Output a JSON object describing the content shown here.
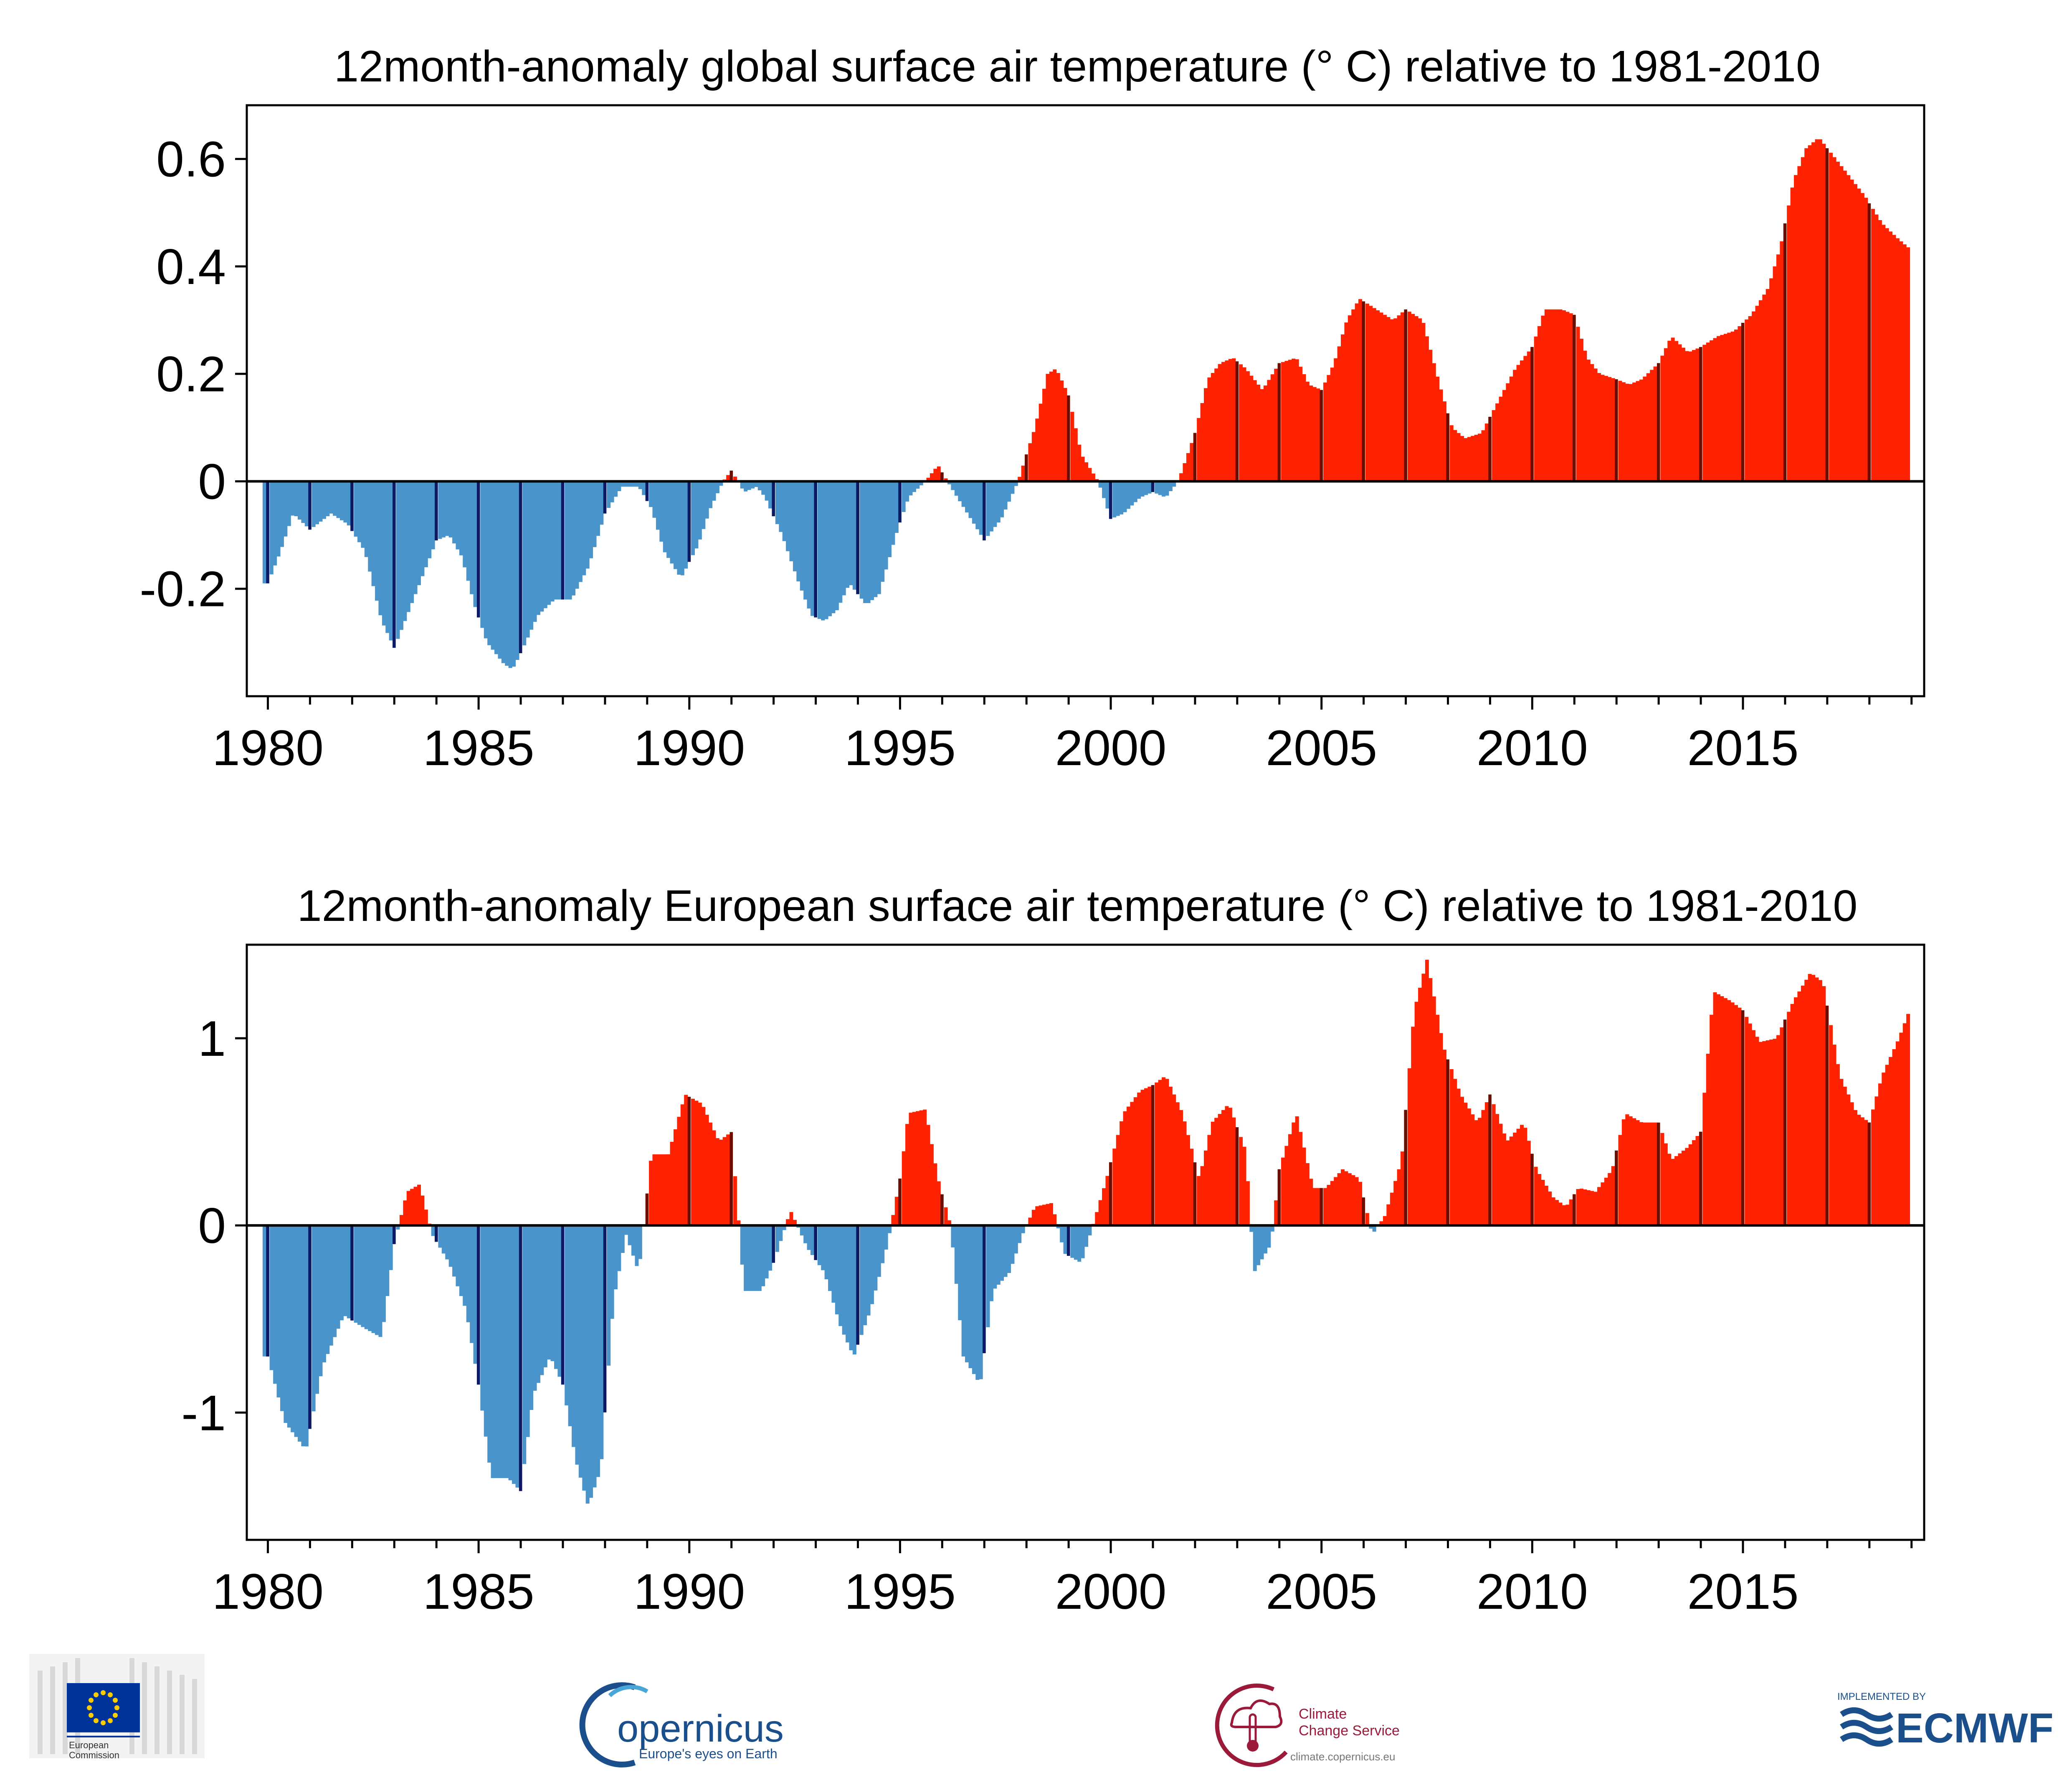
{
  "colors": {
    "positive": "#ff2200",
    "negative": "#4a94cc",
    "year_marker_positive": "#6b0e00",
    "year_marker_negative": "#0c1a66",
    "axis": "#000000"
  },
  "chart_data": [
    {
      "type": "bar",
      "title": "12month-anomaly global surface air temperature (° C) relative to 1981-2010",
      "xlabel": "",
      "ylabel": "",
      "xlim": [
        1979.5,
        2019.3
      ],
      "ylim": [
        -0.4,
        0.7
      ],
      "x_ticks": [
        1980,
        1985,
        1990,
        1995,
        2000,
        2005,
        2010,
        2015
      ],
      "y_ticks": [
        -0.2,
        0,
        0.2,
        0.4,
        0.6
      ],
      "y_tick_labels": [
        "-0.2",
        "0",
        "0.2",
        "0.4",
        "0.6"
      ],
      "x_tick_labels": [
        "1980",
        "1985",
        "1990",
        "1995",
        "2000",
        "2005",
        "2010",
        "2015"
      ],
      "grid": false,
      "x_start": 1979.917,
      "step_months": 1,
      "anchors": [
        [
          1980.0,
          -0.19
        ],
        [
          1980.3,
          -0.13
        ],
        [
          1980.6,
          -0.06
        ],
        [
          1981.0,
          -0.09
        ],
        [
          1981.5,
          -0.06
        ],
        [
          1981.9,
          -0.08
        ],
        [
          1982.3,
          -0.13
        ],
        [
          1982.7,
          -0.26
        ],
        [
          1983.0,
          -0.31
        ],
        [
          1983.3,
          -0.25
        ],
        [
          1983.7,
          -0.17
        ],
        [
          1984.0,
          -0.11
        ],
        [
          1984.3,
          -0.1
        ],
        [
          1984.6,
          -0.14
        ],
        [
          1984.9,
          -0.23
        ],
        [
          1985.2,
          -0.3
        ],
        [
          1985.6,
          -0.34
        ],
        [
          1985.8,
          -0.35
        ],
        [
          1986.0,
          -0.32
        ],
        [
          1986.4,
          -0.25
        ],
        [
          1986.8,
          -0.22
        ],
        [
          1987.2,
          -0.22
        ],
        [
          1987.6,
          -0.16
        ],
        [
          1988.0,
          -0.06
        ],
        [
          1988.4,
          -0.01
        ],
        [
          1988.8,
          -0.01
        ],
        [
          1989.1,
          -0.05
        ],
        [
          1989.4,
          -0.13
        ],
        [
          1989.8,
          -0.18
        ],
        [
          1990.2,
          -0.12
        ],
        [
          1990.5,
          -0.05
        ],
        [
          1990.8,
          0.0
        ],
        [
          1991.0,
          0.02
        ],
        [
          1991.3,
          -0.02
        ],
        [
          1991.6,
          -0.01
        ],
        [
          1991.8,
          -0.03
        ],
        [
          1992.2,
          -0.1
        ],
        [
          1992.6,
          -0.19
        ],
        [
          1992.9,
          -0.25
        ],
        [
          1993.2,
          -0.26
        ],
        [
          1993.5,
          -0.24
        ],
        [
          1993.8,
          -0.19
        ],
        [
          1994.2,
          -0.23
        ],
        [
          1994.5,
          -0.21
        ],
        [
          1994.9,
          -0.1
        ],
        [
          1995.2,
          -0.03
        ],
        [
          1995.6,
          0.0
        ],
        [
          1995.9,
          0.03
        ],
        [
          1996.2,
          -0.01
        ],
        [
          1996.6,
          -0.06
        ],
        [
          1997.0,
          -0.11
        ],
        [
          1997.4,
          -0.07
        ],
        [
          1997.8,
          0.0
        ],
        [
          1998.2,
          0.1
        ],
        [
          1998.5,
          0.2
        ],
        [
          1998.7,
          0.21
        ],
        [
          1999.0,
          0.16
        ],
        [
          1999.3,
          0.05
        ],
        [
          1999.7,
          0.0
        ],
        [
          2000.0,
          -0.07
        ],
        [
          2000.3,
          -0.06
        ],
        [
          2000.7,
          -0.03
        ],
        [
          2001.0,
          -0.02
        ],
        [
          2001.3,
          -0.03
        ],
        [
          2001.6,
          0.0
        ],
        [
          2002.0,
          0.09
        ],
        [
          2002.3,
          0.19
        ],
        [
          2002.6,
          0.22
        ],
        [
          2002.9,
          0.23
        ],
        [
          2003.2,
          0.21
        ],
        [
          2003.6,
          0.17
        ],
        [
          2004.0,
          0.22
        ],
        [
          2004.4,
          0.23
        ],
        [
          2004.7,
          0.18
        ],
        [
          2005.0,
          0.17
        ],
        [
          2005.3,
          0.22
        ],
        [
          2005.6,
          0.3
        ],
        [
          2005.9,
          0.34
        ],
        [
          2006.3,
          0.32
        ],
        [
          2006.7,
          0.3
        ],
        [
          2007.0,
          0.32
        ],
        [
          2007.4,
          0.3
        ],
        [
          2007.8,
          0.18
        ],
        [
          2008.1,
          0.1
        ],
        [
          2008.4,
          0.08
        ],
        [
          2008.8,
          0.09
        ],
        [
          2009.2,
          0.15
        ],
        [
          2009.6,
          0.21
        ],
        [
          2010.0,
          0.25
        ],
        [
          2010.3,
          0.32
        ],
        [
          2010.7,
          0.32
        ],
        [
          2011.0,
          0.31
        ],
        [
          2011.3,
          0.23
        ],
        [
          2011.6,
          0.2
        ],
        [
          2012.0,
          0.19
        ],
        [
          2012.3,
          0.18
        ],
        [
          2012.6,
          0.19
        ],
        [
          2013.0,
          0.22
        ],
        [
          2013.3,
          0.27
        ],
        [
          2013.7,
          0.24
        ],
        [
          2014.0,
          0.25
        ],
        [
          2014.4,
          0.27
        ],
        [
          2014.8,
          0.28
        ],
        [
          2015.2,
          0.31
        ],
        [
          2015.6,
          0.36
        ],
        [
          2015.9,
          0.44
        ],
        [
          2016.2,
          0.56
        ],
        [
          2016.5,
          0.62
        ],
        [
          2016.8,
          0.64
        ],
        [
          2017.1,
          0.61
        ],
        [
          2017.5,
          0.57
        ],
        [
          2017.9,
          0.53
        ],
        [
          2018.3,
          0.48
        ],
        [
          2018.7,
          0.45
        ],
        [
          2019.0,
          0.43
        ]
      ]
    },
    {
      "type": "bar",
      "title": "12month-anomaly European surface air temperature (° C) relative to 1981-2010",
      "xlabel": "",
      "ylabel": "",
      "xlim": [
        1979.5,
        2019.3
      ],
      "ylim": [
        -1.68,
        1.5
      ],
      "x_ticks": [
        1980,
        1985,
        1990,
        1995,
        2000,
        2005,
        2010,
        2015
      ],
      "y_ticks": [
        -1,
        0,
        1
      ],
      "y_tick_labels": [
        "-1",
        "0",
        "1"
      ],
      "x_tick_labels": [
        "1980",
        "1985",
        "1990",
        "1995",
        "2000",
        "2005",
        "2010",
        "2015"
      ],
      "grid": false,
      "x_start": 1979.917,
      "step_months": 1,
      "anchors": [
        [
          1980.0,
          -0.7
        ],
        [
          1980.4,
          -1.05
        ],
        [
          1980.9,
          -1.2
        ],
        [
          1981.3,
          -0.75
        ],
        [
          1981.8,
          -0.48
        ],
        [
          1982.3,
          -0.55
        ],
        [
          1982.7,
          -0.6
        ],
        [
          1983.0,
          -0.1
        ],
        [
          1983.3,
          0.18
        ],
        [
          1983.6,
          0.22
        ],
        [
          1983.9,
          -0.05
        ],
        [
          1984.3,
          -0.2
        ],
        [
          1984.7,
          -0.45
        ],
        [
          1985.0,
          -0.85
        ],
        [
          1985.3,
          -1.35
        ],
        [
          1985.7,
          -1.35
        ],
        [
          1986.0,
          -1.42
        ],
        [
          1986.3,
          -0.9
        ],
        [
          1986.7,
          -0.7
        ],
        [
          1987.0,
          -0.85
        ],
        [
          1987.3,
          -1.25
        ],
        [
          1987.6,
          -1.5
        ],
        [
          1987.9,
          -1.3
        ],
        [
          1988.2,
          -0.4
        ],
        [
          1988.5,
          -0.05
        ],
        [
          1988.8,
          -0.25
        ],
        [
          1989.1,
          0.38
        ],
        [
          1989.5,
          0.38
        ],
        [
          1989.9,
          0.7
        ],
        [
          1990.3,
          0.65
        ],
        [
          1990.7,
          0.45
        ],
        [
          1991.0,
          0.5
        ],
        [
          1991.3,
          -0.35
        ],
        [
          1991.7,
          -0.35
        ],
        [
          1992.0,
          -0.2
        ],
        [
          1992.4,
          0.08
        ],
        [
          1992.8,
          -0.12
        ],
        [
          1993.2,
          -0.25
        ],
        [
          1993.6,
          -0.55
        ],
        [
          1993.9,
          -0.7
        ],
        [
          1994.3,
          -0.45
        ],
        [
          1994.7,
          -0.1
        ],
        [
          1995.0,
          0.25
        ],
        [
          1995.2,
          0.6
        ],
        [
          1995.6,
          0.62
        ],
        [
          1995.9,
          0.25
        ],
        [
          1996.2,
          0.0
        ],
        [
          1996.5,
          -0.7
        ],
        [
          1996.9,
          -0.85
        ],
        [
          1997.2,
          -0.35
        ],
        [
          1997.6,
          -0.25
        ],
        [
          1997.9,
          -0.05
        ],
        [
          1998.2,
          0.1
        ],
        [
          1998.6,
          0.12
        ],
        [
          1998.9,
          -0.15
        ],
        [
          1999.3,
          -0.2
        ],
        [
          1999.6,
          0.02
        ],
        [
          1999.9,
          0.25
        ],
        [
          2000.3,
          0.6
        ],
        [
          2000.7,
          0.72
        ],
        [
          2001.0,
          0.75
        ],
        [
          2001.3,
          0.8
        ],
        [
          2001.7,
          0.6
        ],
        [
          2002.1,
          0.25
        ],
        [
          2002.4,
          0.55
        ],
        [
          2002.8,
          0.65
        ],
        [
          2003.2,
          0.4
        ],
        [
          2003.4,
          -0.25
        ],
        [
          2003.8,
          -0.1
        ],
        [
          2004.0,
          0.3
        ],
        [
          2004.4,
          0.6
        ],
        [
          2004.8,
          0.2
        ],
        [
          2005.1,
          0.2
        ],
        [
          2005.5,
          0.3
        ],
        [
          2005.9,
          0.25
        ],
        [
          2006.2,
          -0.05
        ],
        [
          2006.5,
          0.05
        ],
        [
          2006.9,
          0.35
        ],
        [
          2007.2,
          1.15
        ],
        [
          2007.5,
          1.42
        ],
        [
          2007.9,
          0.95
        ],
        [
          2008.3,
          0.7
        ],
        [
          2008.7,
          0.55
        ],
        [
          2009.0,
          0.7
        ],
        [
          2009.4,
          0.45
        ],
        [
          2009.8,
          0.55
        ],
        [
          2010.1,
          0.3
        ],
        [
          2010.5,
          0.15
        ],
        [
          2010.8,
          0.1
        ],
        [
          2011.1,
          0.2
        ],
        [
          2011.5,
          0.18
        ],
        [
          2011.9,
          0.3
        ],
        [
          2012.2,
          0.6
        ],
        [
          2012.6,
          0.55
        ],
        [
          2013.0,
          0.55
        ],
        [
          2013.3,
          0.35
        ],
        [
          2013.7,
          0.42
        ],
        [
          2014.0,
          0.5
        ],
        [
          2014.3,
          1.25
        ],
        [
          2014.7,
          1.2
        ],
        [
          2015.0,
          1.15
        ],
        [
          2015.4,
          0.98
        ],
        [
          2015.8,
          1.0
        ],
        [
          2016.2,
          1.2
        ],
        [
          2016.6,
          1.35
        ],
        [
          2016.9,
          1.3
        ],
        [
          2017.3,
          0.8
        ],
        [
          2017.7,
          0.6
        ],
        [
          2018.0,
          0.55
        ],
        [
          2018.3,
          0.8
        ],
        [
          2018.7,
          1.0
        ],
        [
          2019.0,
          1.18
        ]
      ]
    }
  ],
  "logos": [
    {
      "name": "eu-logo",
      "text_line1": "European",
      "text_line2": "Commission"
    },
    {
      "name": "copernicus-logo",
      "text": "opernicus",
      "subtitle": "Europe's eyes on Earth"
    },
    {
      "name": "c3s-logo",
      "text_line1": "Climate",
      "text_line2": "Change Service",
      "url": "climate.copernicus.eu"
    },
    {
      "name": "ecmwf-logo",
      "pretext": "IMPLEMENTED BY",
      "text": "ECMWF"
    }
  ]
}
